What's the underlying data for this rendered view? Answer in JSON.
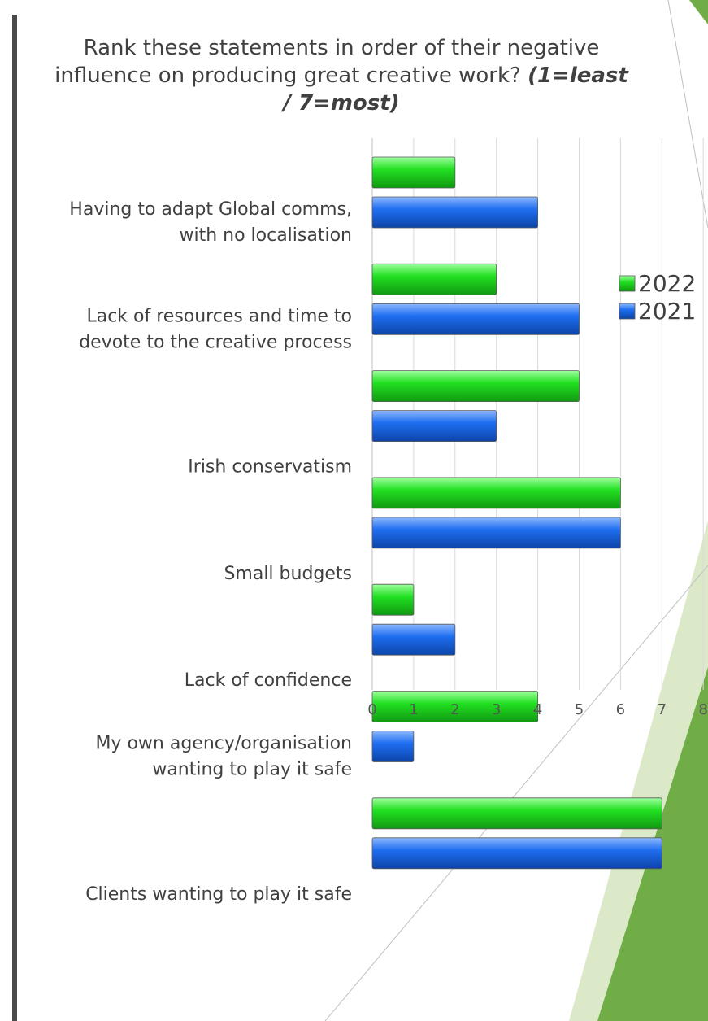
{
  "title": {
    "main": "Rank these statements in order of their negative influence on producing great creative work?",
    "emphasis": "(1=least / 7=most)"
  },
  "colors": {
    "green": "#22e022",
    "blue": "#1e6ef0",
    "slide_accent": "#70ad47"
  },
  "chart_data": {
    "type": "bar",
    "orientation": "horizontal",
    "categories": [
      "Having to adapt Global comms, with no localisation",
      "Lack of resources and time to devote to the creative process",
      "Irish conservatism",
      "Small budgets",
      "Lack of confidence",
      "My own agency/organisation wanting to play it safe",
      "Clients wanting to play it safe"
    ],
    "category_lines": [
      [
        "Having to adapt Global comms,",
        "with no localisation"
      ],
      [
        "Lack of resources and time to",
        "devote to the creative process"
      ],
      [
        "Irish conservatism"
      ],
      [
        "Small budgets"
      ],
      [
        "Lack of confidence"
      ],
      [
        "My own agency/organisation",
        "wanting to play it safe"
      ],
      [
        "Clients wanting to play it safe"
      ]
    ],
    "series": [
      {
        "name": "2022",
        "color": "#22e022",
        "values": [
          2,
          3,
          5,
          6,
          1,
          4,
          7
        ]
      },
      {
        "name": "2021",
        "color": "#1e6ef0",
        "values": [
          4,
          5,
          3,
          6,
          2,
          1,
          7
        ]
      }
    ],
    "xlim": [
      0,
      8
    ],
    "xticks": [
      "0",
      "1",
      "2",
      "3",
      "4",
      "5",
      "6",
      "7",
      "8"
    ],
    "grid": true,
    "legend": "right"
  }
}
